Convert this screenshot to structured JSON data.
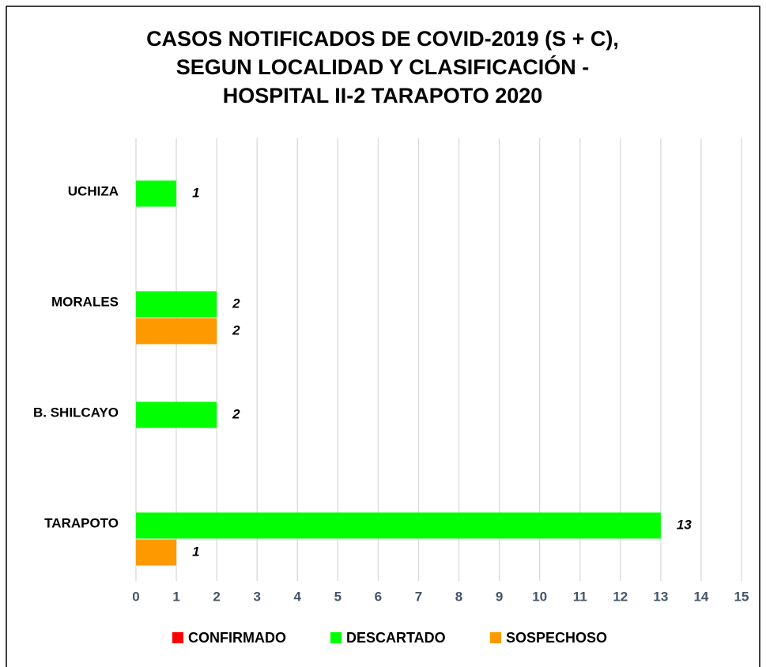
{
  "chart_data": {
    "type": "bar",
    "orientation": "horizontal",
    "title": [
      "CASOS NOTIFICADOS DE COVID-2019 (S + C),",
      "SEGUN LOCALIDAD Y CLASIFICACIÓN -",
      "HOSPITAL II-2 TARAPOTO 2020"
    ],
    "categories": [
      "UCHIZA",
      "MORALES",
      "B. SHILCAYO",
      "TARAPOTO"
    ],
    "series": [
      {
        "name": "CONFIRMADO",
        "color": "#ff0000",
        "values": [
          null,
          null,
          null,
          null
        ]
      },
      {
        "name": "DESCARTADO",
        "color": "#00ff00",
        "values": [
          1,
          2,
          2,
          13
        ]
      },
      {
        "name": "SOSPECHOSO",
        "color": "#ff9900",
        "values": [
          null,
          2,
          null,
          1
        ]
      }
    ],
    "xlim": [
      0,
      15
    ],
    "xticks": [
      0,
      1,
      2,
      3,
      4,
      5,
      6,
      7,
      8,
      9,
      10,
      11,
      12,
      13,
      14,
      15
    ],
    "grid": true,
    "legend": "bottom"
  }
}
